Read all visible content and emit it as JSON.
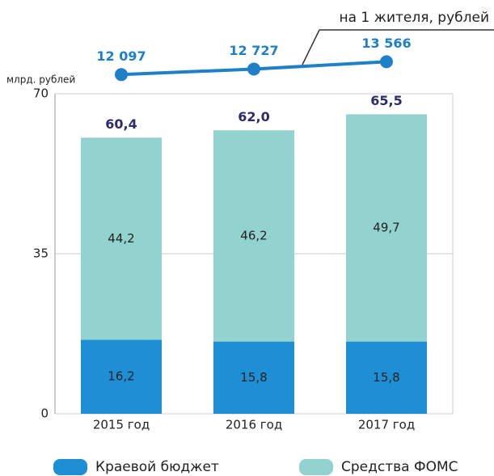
{
  "chart_data": {
    "type": "bar",
    "stacked": true,
    "ylabel": "млрд. рублей",
    "categories": [
      "2015 год",
      "2016 год",
      "2017 год"
    ],
    "series": [
      {
        "name": "Краевой бюджет",
        "color": "#1e8fd5",
        "values": [
          16.2,
          15.8,
          15.8
        ],
        "value_labels": [
          "16,2",
          "15,8",
          "15,8"
        ]
      },
      {
        "name": "Средства ФОМС",
        "color": "#93d3cf",
        "values": [
          44.2,
          46.2,
          49.7
        ],
        "value_labels": [
          "44,2",
          "46,2",
          "49,7"
        ]
      },
      {
        "name": "на 1 жителя, рублей",
        "type": "line",
        "axis": "y2",
        "color": "#1f80c8",
        "values": [
          12097,
          12727,
          13566
        ],
        "value_labels": [
          "12 097",
          "12 727",
          "13 566"
        ]
      }
    ],
    "totals": [
      60.4,
      62.0,
      65.5
    ],
    "total_labels": [
      "60,4",
      "62,0",
      "65,5"
    ],
    "ylim": [
      0,
      70
    ],
    "yticks": [
      0,
      35,
      70
    ],
    "grid": true,
    "y2lim": [
      10000,
      16000
    ]
  }
}
